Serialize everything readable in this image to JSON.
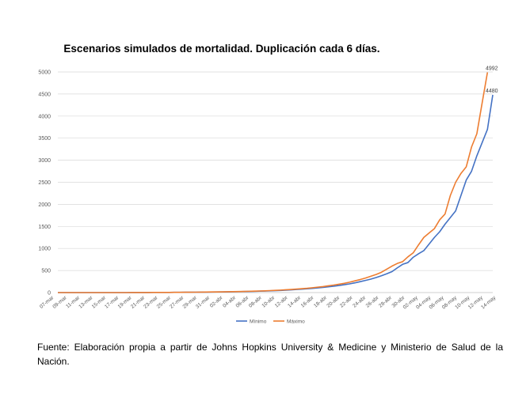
{
  "chart_data": {
    "type": "line",
    "title": "Escenarios simulados de mortalidad. Duplicación cada 6 días.",
    "xlabel": "",
    "ylabel": "",
    "ylim": [
      0,
      5000
    ],
    "yticks": [
      0,
      500,
      1000,
      1500,
      2000,
      2500,
      3000,
      3500,
      4000,
      4500,
      5000
    ],
    "grid": true,
    "legend": "bottom",
    "x_tick_labels": [
      "07-mar",
      "09-mar",
      "11-mar",
      "13-mar",
      "15-mar",
      "17-mar",
      "19-mar",
      "21-mar",
      "23-mar",
      "25-mar",
      "27-mar",
      "29-mar",
      "31-mar",
      "02-abr",
      "04-abr",
      "06-abr",
      "08-abr",
      "10-abr",
      "12-abr",
      "14-abr",
      "16-abr",
      "18-abr",
      "20-abr",
      "22-abr",
      "24-abr",
      "26-abr",
      "28-abr",
      "30-abr",
      "02-may",
      "04-may",
      "06-may",
      "08-may",
      "10-may",
      "12-may",
      "14-may"
    ],
    "series": [
      {
        "name": "Mínimo",
        "color": "#4472C4",
        "end_label": "4480",
        "values": [
          0,
          0,
          0,
          0,
          0,
          0,
          0,
          0,
          0,
          0,
          0,
          0,
          0,
          0,
          1,
          1,
          2,
          2,
          3,
          3,
          4,
          4,
          5,
          6,
          7,
          8,
          9,
          10,
          11,
          13,
          14,
          15,
          17,
          19,
          20,
          23,
          25,
          28,
          32,
          35,
          40,
          43,
          48,
          55,
          62,
          70,
          78,
          85,
          95,
          105,
          117,
          130,
          145,
          160,
          178,
          197,
          220,
          248,
          275,
          305,
          340,
          380,
          425,
          475,
          560,
          640,
          680,
          800,
          880,
          950,
          1100,
          1250,
          1380,
          1550,
          1700,
          1850,
          2200,
          2550,
          2750,
          3100,
          3400,
          3700,
          4480
        ]
      },
      {
        "name": "Máximo",
        "color": "#ED7D31",
        "end_label": "4992",
        "values": [
          0,
          0,
          0,
          0,
          0,
          0,
          0,
          0,
          0,
          0,
          0,
          0,
          0,
          0,
          1,
          1,
          2,
          2,
          3,
          3,
          4,
          4,
          5,
          6,
          7,
          8,
          9,
          11,
          12,
          14,
          15,
          17,
          19,
          21,
          23,
          26,
          29,
          32,
          36,
          40,
          45,
          50,
          56,
          63,
          71,
          80,
          89,
          98,
          110,
          123,
          136,
          153,
          170,
          190,
          210,
          235,
          265,
          295,
          330,
          370,
          410,
          460,
          530,
          600,
          660,
          700,
          810,
          900,
          1080,
          1250,
          1350,
          1450,
          1650,
          1780,
          2200,
          2500,
          2700,
          2850,
          3300,
          3600,
          4300,
          4992
        ]
      }
    ]
  },
  "caption": "Fuente: Elaboración propia a partir de Johns Hopkins University & Medicine y Ministerio de Salud de la Nación."
}
